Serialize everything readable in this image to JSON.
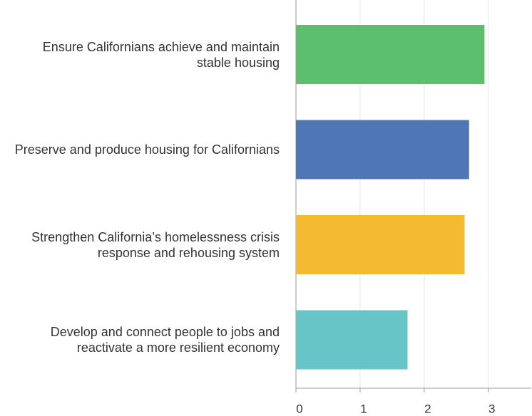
{
  "chart_data": {
    "type": "barh",
    "categories": [
      "Ensure Californians achieve and maintain stable housing",
      "Preserve and produce housing for Californians",
      "Strengthen California’s homelessness crisis response and rehousing system",
      "Develop and connect people to jobs and reactivate a more resilient economy"
    ],
    "values": [
      2.94,
      2.7,
      2.63,
      1.74
    ],
    "colors": [
      "#5dbf6e",
      "#4f77b5",
      "#f4bb30",
      "#67c5c8"
    ],
    "xlim": [
      0,
      3.67
    ],
    "xticks": [
      0,
      1,
      2,
      3
    ],
    "grid": true
  }
}
